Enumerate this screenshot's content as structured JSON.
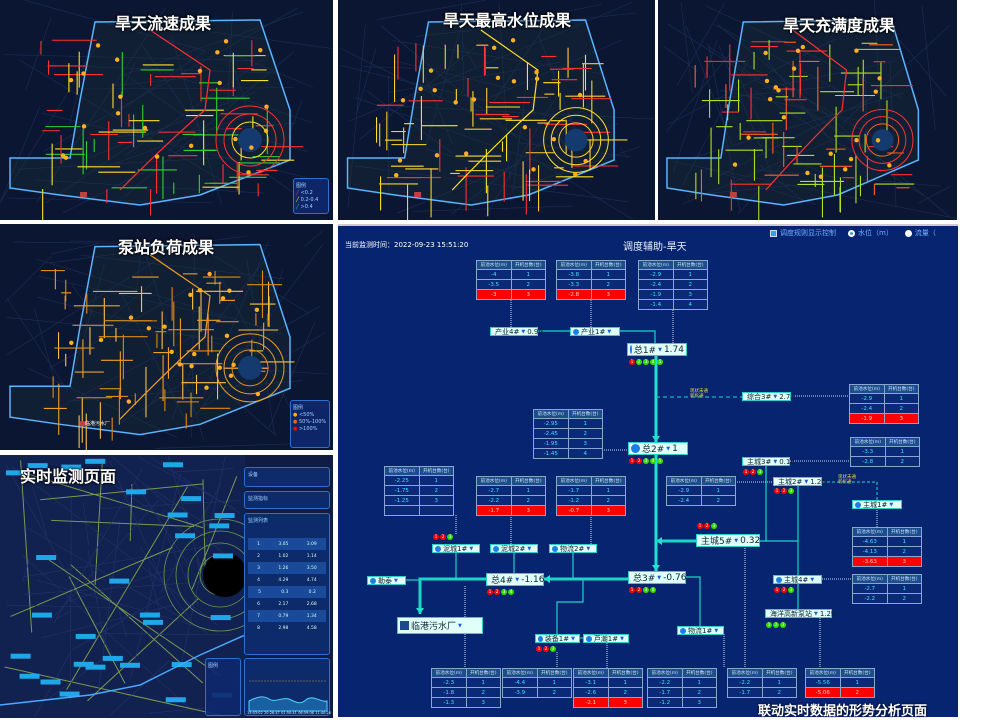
{
  "panels": {
    "flow_speed": {
      "title": "旱天流速成果",
      "network_colors": [
        "#ff3030",
        "#ffe020",
        "#30d030"
      ],
      "legend": {
        "title": "图例",
        "items": [
          {
            "label": "<0.2",
            "color": "#ff3030"
          },
          {
            "label": "0.2-0.4",
            "color": "#ffe020"
          },
          {
            "label": ">0.4",
            "color": "#30d030"
          }
        ]
      }
    },
    "max_level": {
      "title": "旱天最高水位成果",
      "network_colors": [
        "#ffe020",
        "#ffcc30",
        "#ff3030"
      ]
    },
    "fullness": {
      "title": "旱天充满度成果",
      "network_colors": [
        "#ff3030",
        "#ff6020",
        "#b0e020"
      ]
    },
    "pump_load": {
      "title": "泵站负荷成果",
      "network_colors": [
        "#f0a020",
        "#e08a10",
        "#ffc040"
      ],
      "plant_label": "临港污水厂",
      "legend": {
        "title": "图例",
        "items": [
          {
            "label": "<50%",
            "color": "#ffb000"
          },
          {
            "label": "50%-100%",
            "color": "#ff6010"
          },
          {
            "label": ">100%",
            "color": "#ff0000"
          }
        ]
      }
    },
    "monitor": {
      "title": "实时监测页面",
      "sections": {
        "device": "设备",
        "indicator": "监测指标",
        "list": "监测列表",
        "legend": "图例"
      },
      "rows": [
        {
          "no": "1",
          "a": "3.05",
          "b": "3.09"
        },
        {
          "no": "2",
          "a": "1.02",
          "b": "1.14"
        },
        {
          "no": "3",
          "a": "1.26",
          "b": "3.50"
        },
        {
          "no": "4",
          "a": "4.29",
          "b": "4.74"
        },
        {
          "no": "5",
          "a": "0.3",
          "b": "0.2"
        },
        {
          "no": "6",
          "a": "2.17",
          "b": "2.68"
        },
        {
          "no": "7",
          "a": "0.79",
          "b": "1.34"
        },
        {
          "no": "8",
          "a": "2.98",
          "b": "4.58"
        }
      ],
      "chart_ticks": [
        "15:03:02",
        "20:26:47",
        "01:50:41",
        "06:59:06",
        "11:40:20"
      ]
    }
  },
  "schematic": {
    "timestamp_label": "当前监测时间：2022-09-23 15:51:20",
    "title": "调度辅助-旱天",
    "controls": {
      "rule_toggle": "调度规则显示控制",
      "radio_level": "水位（m）",
      "radio_flow": "流量（"
    },
    "caption": "联动实时数据的形势分析页面",
    "table_headers": [
      "前池水位(m)",
      "开机台数(台)"
    ],
    "colors": {
      "background": "#062470",
      "pipe": "#19d6c8",
      "alarm": "#ff0000",
      "ok": "#33dd00"
    },
    "tables": [
      {
        "rows": [
          [
            "-4",
            "1"
          ],
          [
            "-3.5",
            "2"
          ],
          [
            "-3",
            "3"
          ]
        ],
        "alarm_row": 2
      },
      {
        "rows": [
          [
            "-3.8",
            "1"
          ],
          [
            "-3.3",
            "2"
          ],
          [
            "-2.8",
            "3"
          ]
        ],
        "alarm_row": 2
      },
      {
        "rows": [
          [
            "-2.9",
            "1"
          ],
          [
            "-2.4",
            "2"
          ],
          [
            "-1.9",
            "3"
          ],
          [
            "-1.4",
            "4"
          ]
        ]
      },
      {
        "rows": [
          [
            "-2.9",
            "1"
          ],
          [
            "-2.4",
            "2"
          ],
          [
            "-1.9",
            "3"
          ]
        ],
        "alarm_row": 2
      },
      {
        "rows": [
          [
            "-2.95",
            "1"
          ],
          [
            "-2.45",
            "2"
          ],
          [
            "-1.95",
            "3"
          ],
          [
            "-1.45",
            "4"
          ]
        ]
      },
      {
        "rows": [
          [
            "-2.25",
            "1"
          ],
          [
            "-1.75",
            "2"
          ],
          [
            "-1.25",
            "3"
          ],
          [
            "",
            ""
          ]
        ]
      },
      {
        "rows": [
          [
            "-2.7",
            "1"
          ],
          [
            "-2.2",
            "2"
          ],
          [
            "-1.7",
            "3"
          ]
        ],
        "alarm_row": 2
      },
      {
        "rows": [
          [
            "-1.7",
            "1"
          ],
          [
            "-1.2",
            "2"
          ],
          [
            "-0.7",
            "3"
          ]
        ],
        "alarm_row": 2
      },
      {
        "rows": [
          [
            "-3.3",
            "1"
          ],
          [
            "-2.8",
            "2"
          ]
        ]
      },
      {
        "rows": [
          [
            "-2.9",
            "1"
          ],
          [
            "-2.4",
            "2"
          ]
        ]
      },
      {
        "rows": [
          [
            "-4.63",
            "1"
          ],
          [
            "-4.13",
            "2"
          ],
          [
            "-3.63",
            "3"
          ]
        ],
        "alarm_row": 2
      },
      {
        "rows": [
          [
            "-2.7",
            "1"
          ],
          [
            "-2.2",
            "2"
          ]
        ]
      },
      {
        "rows": [
          [
            "-2.3",
            "1"
          ],
          [
            "-1.8",
            "2"
          ],
          [
            "-1.3",
            "3"
          ]
        ]
      },
      {
        "rows": [
          [
            "-4.4",
            "1"
          ],
          [
            "-3.9",
            "2"
          ]
        ]
      },
      {
        "rows": [
          [
            "-3.1",
            "1"
          ],
          [
            "-2.6",
            "2"
          ],
          [
            "-2.1",
            "3"
          ]
        ],
        "alarm_row": 2
      },
      {
        "rows": [
          [
            "-2.2",
            "1"
          ],
          [
            "-1.7",
            "2"
          ],
          [
            "-1.2",
            "3"
          ]
        ]
      },
      {
        "rows": [
          [
            "-2.2",
            "1"
          ],
          [
            "-1.7",
            "2"
          ]
        ]
      },
      {
        "rows": [
          [
            "-5.56",
            "1"
          ],
          [
            "-5.06",
            "2"
          ]
        ],
        "alarm_row": 1
      }
    ],
    "stations": [
      {
        "name": "产业4#",
        "value": "0.99"
      },
      {
        "name": "产业1#",
        "value": ""
      },
      {
        "name": "总1#",
        "value": "1.74",
        "lamps": [
          "r",
          "g",
          "g",
          "g",
          "g"
        ]
      },
      {
        "name": "综合3#",
        "value": "2.74"
      },
      {
        "name": "总2#",
        "value": "1",
        "lamps": [
          "r",
          "r",
          "g",
          "g",
          "g"
        ]
      },
      {
        "name": "主城3#",
        "value": "0.15",
        "lamps": [
          "r",
          "r",
          "g"
        ]
      },
      {
        "name": "主城2#",
        "value": "1.26",
        "lamps": [
          "r",
          "r",
          "g"
        ]
      },
      {
        "name": "主城1#",
        "value": ""
      },
      {
        "name": "主城5#",
        "value": "0.32",
        "lamps": [
          "r",
          "r",
          "g"
        ]
      },
      {
        "name": "泥城1#",
        "value": "",
        "lamps": [
          "r",
          "r",
          "g"
        ]
      },
      {
        "name": "泥城2#",
        "value": ""
      },
      {
        "name": "物流2#",
        "value": ""
      },
      {
        "name": "总4#",
        "value": "-1.16",
        "lamps": [
          "r",
          "r",
          "g",
          "g"
        ]
      },
      {
        "name": "勒泰",
        "value": ""
      },
      {
        "name": "总3#",
        "value": "-0.76",
        "lamps": [
          "r",
          "r",
          "g",
          "g"
        ]
      },
      {
        "name": "主城4#",
        "value": "",
        "lamps": [
          "r",
          "r",
          "g"
        ]
      },
      {
        "name": "临港污水厂",
        "value": ""
      },
      {
        "name": "装备1#",
        "value": "",
        "lamps": [
          "r",
          "r",
          "g"
        ]
      },
      {
        "name": "芦潮1#",
        "value": ""
      },
      {
        "name": "物流1#",
        "value": ""
      },
      {
        "name": "海洋高新泵站",
        "value": "1.29",
        "lamps": [
          "g",
          "g",
          "g"
        ]
      }
    ],
    "link_notes": [
      [
        "现状未通",
        "新拆通"
      ],
      [
        "现状未通",
        "新拆通"
      ]
    ]
  }
}
